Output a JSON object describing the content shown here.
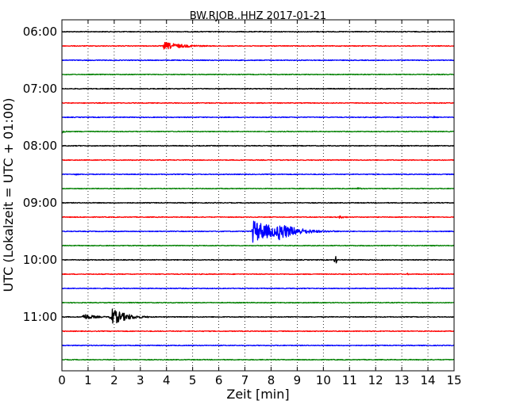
{
  "chart_data": {
    "type": "line",
    "title": "BW.RJOB..HHZ 2017-01-21",
    "xlabel": "Zeit  [min]",
    "ylabel": "UTC (Lokalzeit = UTC + 01:00)",
    "xlim": [
      0,
      15
    ],
    "x_ticks": [
      "0",
      "1",
      "2",
      "3",
      "4",
      "5",
      "6",
      "7",
      "8",
      "9",
      "10",
      "11",
      "12",
      "13",
      "14",
      "15"
    ],
    "y_ticks": [
      "06:00",
      "07:00",
      "08:00",
      "09:00",
      "10:00",
      "11:00"
    ],
    "trace_minutes": 15,
    "grid": "vertical dotted",
    "colors": [
      "#000000",
      "#ff0000",
      "#0000ff",
      "#008000"
    ],
    "traces": [
      {
        "start": "06:00",
        "color": "#000000",
        "events": []
      },
      {
        "start": "06:15",
        "color": "#ff0000",
        "events": [
          {
            "t": 3.9,
            "amp": 0.35,
            "dur": 2.6
          }
        ]
      },
      {
        "start": "06:30",
        "color": "#0000ff",
        "events": []
      },
      {
        "start": "06:45",
        "color": "#008000",
        "events": []
      },
      {
        "start": "07:00",
        "color": "#000000",
        "events": []
      },
      {
        "start": "07:15",
        "color": "#ff0000",
        "events": []
      },
      {
        "start": "07:30",
        "color": "#0000ff",
        "events": [
          {
            "t": 14.2,
            "amp": 0.12,
            "dur": 0.8
          }
        ]
      },
      {
        "start": "07:45",
        "color": "#008000",
        "events": [
          {
            "t": 0.0,
            "amp": 0.18,
            "dur": 0.5
          }
        ]
      },
      {
        "start": "08:00",
        "color": "#000000",
        "events": []
      },
      {
        "start": "08:15",
        "color": "#ff0000",
        "events": []
      },
      {
        "start": "08:30",
        "color": "#0000ff",
        "events": [
          {
            "t": 0.5,
            "amp": 0.1,
            "dur": 0.5
          }
        ]
      },
      {
        "start": "08:45",
        "color": "#008000",
        "events": [
          {
            "t": 11.3,
            "amp": 0.12,
            "dur": 0.6
          }
        ]
      },
      {
        "start": "09:00",
        "color": "#000000",
        "events": []
      },
      {
        "start": "09:15",
        "color": "#ff0000",
        "events": [
          {
            "t": 10.6,
            "amp": 0.12,
            "dur": 1.2
          }
        ]
      },
      {
        "start": "09:30",
        "color": "#0000ff",
        "events": [
          {
            "t": 7.3,
            "amp": 1.0,
            "dur": 3.5
          },
          {
            "t": 8.25,
            "amp": 0.85,
            "dur": 2.4
          }
        ]
      },
      {
        "start": "09:45",
        "color": "#008000",
        "events": []
      },
      {
        "start": "10:00",
        "color": "#000000",
        "events": [
          {
            "t": 10.45,
            "amp": 0.45,
            "dur": 0.08
          }
        ]
      },
      {
        "start": "10:15",
        "color": "#ff0000",
        "events": [
          {
            "t": 13.2,
            "amp": 0.1,
            "dur": 0.4
          }
        ]
      },
      {
        "start": "10:30",
        "color": "#0000ff",
        "events": []
      },
      {
        "start": "10:45",
        "color": "#008000",
        "events": []
      },
      {
        "start": "11:00",
        "color": "#000000",
        "events": [
          {
            "t": 0.8,
            "amp": 0.3,
            "dur": 1.5
          },
          {
            "t": 1.85,
            "amp": 0.85,
            "dur": 1.8
          }
        ]
      },
      {
        "start": "11:15",
        "color": "#ff0000",
        "events": []
      },
      {
        "start": "11:30",
        "color": "#0000ff",
        "events": []
      },
      {
        "start": "11:45",
        "color": "#008000",
        "events": []
      }
    ]
  }
}
